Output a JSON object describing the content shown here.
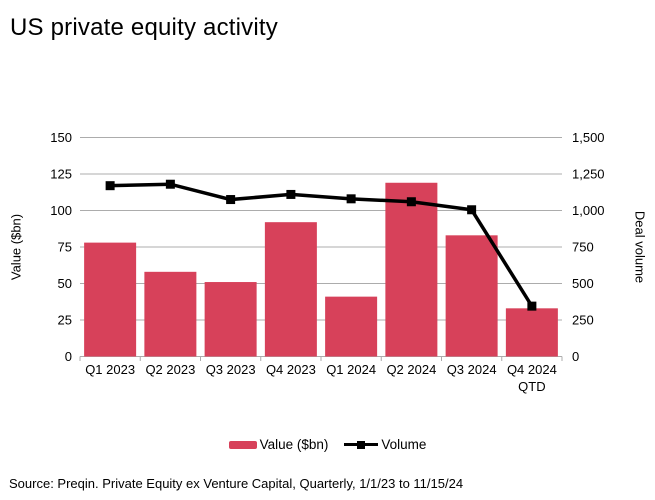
{
  "page": {
    "title": "US private equity activity",
    "source": "Source: Preqin. Private Equity ex Venture Capital, Quarterly, 1/1/23 to 11/15/24"
  },
  "colors": {
    "bar": "#D7415A",
    "line": "#000000",
    "gridline": "#ACACAC",
    "text": "#000000"
  },
  "legend": {
    "value_label": "Value ($bn)",
    "volume_label": "Volume"
  },
  "chart_data": {
    "type": "bar+line",
    "title": "US private equity activity",
    "categories": [
      "Q1 2023",
      "Q2 2023",
      "Q3 2023",
      "Q4 2023",
      "Q1 2024",
      "Q2 2024",
      "Q3 2024",
      "Q4 2024\nQTD"
    ],
    "series": [
      {
        "name": "Value ($bn)",
        "type": "bar",
        "axis": "left",
        "values": [
          78,
          58,
          51,
          92,
          41,
          119,
          83,
          33
        ]
      },
      {
        "name": "Volume",
        "type": "line",
        "axis": "right",
        "values": [
          1170,
          1180,
          1075,
          1110,
          1080,
          1060,
          1005,
          345
        ]
      }
    ],
    "left_axis": {
      "label": "Value ($bn)",
      "range": [
        0,
        150
      ],
      "tick_values": [
        0,
        25,
        50,
        75,
        100,
        125,
        150
      ],
      "tick_labels": [
        "0",
        "25",
        "50",
        "75",
        "100",
        "125",
        "150"
      ]
    },
    "right_axis": {
      "label": "Deal volume",
      "range": [
        0,
        1500
      ],
      "tick_values": [
        0,
        250,
        500,
        750,
        1000,
        1250,
        1500
      ],
      "tick_labels": [
        "0",
        "250",
        "500",
        "750",
        "1,000",
        "1,250",
        "1,500"
      ]
    },
    "grid": true,
    "legend_position": "bottom"
  }
}
